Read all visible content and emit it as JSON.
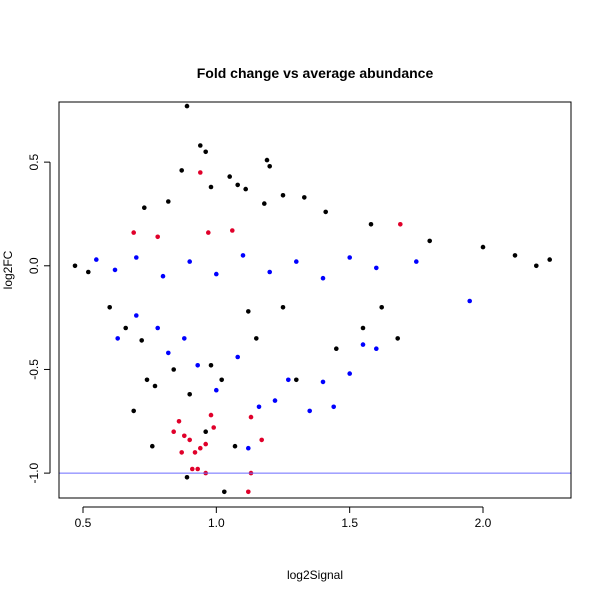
{
  "chart_data": {
    "type": "scatter",
    "title": "Fold change vs average abundance",
    "xlabel": "log2Signal",
    "ylabel": "log2FC",
    "xlim": [
      0.41,
      2.33
    ],
    "ylim": [
      -1.12,
      0.79
    ],
    "x_ticks": [
      0.5,
      1.0,
      1.5,
      2.0
    ],
    "x_tick_labels": [
      "0.5",
      "1.0",
      "1.5",
      "2.0"
    ],
    "y_ticks": [
      -1.0,
      -0.5,
      0.0,
      0.5
    ],
    "y_tick_labels": [
      "-1.0",
      "-0.5",
      "0.0",
      "0.5"
    ],
    "grid": false,
    "legend": "none",
    "reference_line": {
      "y": -1.0,
      "color": "#6b6bff"
    },
    "colors": {
      "background_points": "#000000",
      "blue_points": "#0000ff",
      "red_points": "#e0002a"
    },
    "series": [
      {
        "color": "#000000",
        "points": [
          [
            0.89,
            0.77
          ],
          [
            0.94,
            0.58
          ],
          [
            0.96,
            0.55
          ],
          [
            1.19,
            0.51
          ],
          [
            1.2,
            0.48
          ],
          [
            0.87,
            0.46
          ],
          [
            1.05,
            0.43
          ],
          [
            1.08,
            0.39
          ],
          [
            1.25,
            0.34
          ],
          [
            1.33,
            0.33
          ],
          [
            0.98,
            0.38
          ],
          [
            1.11,
            0.37
          ],
          [
            0.73,
            0.28
          ],
          [
            0.82,
            0.31
          ],
          [
            1.18,
            0.3
          ],
          [
            1.41,
            0.26
          ],
          [
            1.58,
            0.2
          ],
          [
            1.8,
            0.12
          ],
          [
            2.0,
            0.09
          ],
          [
            2.12,
            0.05
          ],
          [
            2.25,
            0.03
          ],
          [
            2.2,
            0.0
          ],
          [
            0.47,
            0.0
          ],
          [
            0.52,
            -0.03
          ],
          [
            0.6,
            -0.2
          ],
          [
            0.66,
            -0.3
          ],
          [
            0.72,
            -0.36
          ],
          [
            0.74,
            -0.55
          ],
          [
            0.77,
            -0.58
          ],
          [
            0.69,
            -0.7
          ],
          [
            0.76,
            -0.87
          ],
          [
            0.84,
            -0.5
          ],
          [
            0.9,
            -0.62
          ],
          [
            0.96,
            -0.8
          ],
          [
            1.07,
            -0.87
          ],
          [
            1.02,
            -0.55
          ],
          [
            1.15,
            -0.35
          ],
          [
            1.3,
            -0.55
          ],
          [
            1.45,
            -0.4
          ],
          [
            1.55,
            -0.3
          ],
          [
            1.62,
            -0.2
          ],
          [
            1.68,
            -0.35
          ],
          [
            0.89,
            -1.02
          ],
          [
            1.03,
            -1.09
          ],
          [
            0.98,
            -0.48
          ],
          [
            1.12,
            -0.22
          ],
          [
            1.25,
            -0.2
          ]
        ]
      },
      {
        "color": "#0000ff",
        "points": [
          [
            0.55,
            0.03
          ],
          [
            0.62,
            -0.02
          ],
          [
            0.7,
            0.04
          ],
          [
            0.8,
            -0.05
          ],
          [
            0.9,
            0.02
          ],
          [
            1.0,
            -0.04
          ],
          [
            1.1,
            0.05
          ],
          [
            1.2,
            -0.03
          ],
          [
            1.3,
            0.02
          ],
          [
            1.4,
            -0.06
          ],
          [
            1.5,
            0.04
          ],
          [
            1.6,
            -0.01
          ],
          [
            1.75,
            0.02
          ],
          [
            0.63,
            -0.35
          ],
          [
            0.7,
            -0.24
          ],
          [
            0.82,
            -0.42
          ],
          [
            0.88,
            -0.35
          ],
          [
            0.93,
            -0.48
          ],
          [
            1.0,
            -0.6
          ],
          [
            1.08,
            -0.44
          ],
          [
            1.16,
            -0.68
          ],
          [
            1.27,
            -0.55
          ],
          [
            1.35,
            -0.7
          ],
          [
            1.44,
            -0.68
          ],
          [
            1.5,
            -0.52
          ],
          [
            1.55,
            -0.38
          ],
          [
            1.6,
            -0.4
          ],
          [
            1.95,
            -0.17
          ],
          [
            1.4,
            -0.56
          ],
          [
            1.22,
            -0.65
          ],
          [
            0.78,
            -0.3
          ],
          [
            1.12,
            -0.88
          ]
        ]
      },
      {
        "color": "#e0002a",
        "points": [
          [
            0.94,
            0.45
          ],
          [
            1.06,
            0.17
          ],
          [
            0.97,
            0.16
          ],
          [
            0.69,
            0.16
          ],
          [
            0.78,
            0.14
          ],
          [
            1.69,
            0.2
          ],
          [
            0.86,
            -0.75
          ],
          [
            0.88,
            -0.82
          ],
          [
            0.9,
            -0.84
          ],
          [
            0.92,
            -0.9
          ],
          [
            0.94,
            -0.88
          ],
          [
            0.96,
            -0.86
          ],
          [
            0.87,
            -0.9
          ],
          [
            0.91,
            -0.98
          ],
          [
            0.99,
            -0.78
          ],
          [
            1.13,
            -0.73
          ],
          [
            1.17,
            -0.84
          ],
          [
            0.93,
            -0.98
          ],
          [
            0.96,
            -1.0
          ],
          [
            1.12,
            -1.09
          ],
          [
            1.13,
            -1.0
          ],
          [
            0.98,
            -0.72
          ],
          [
            0.84,
            -0.8
          ]
        ]
      }
    ]
  }
}
